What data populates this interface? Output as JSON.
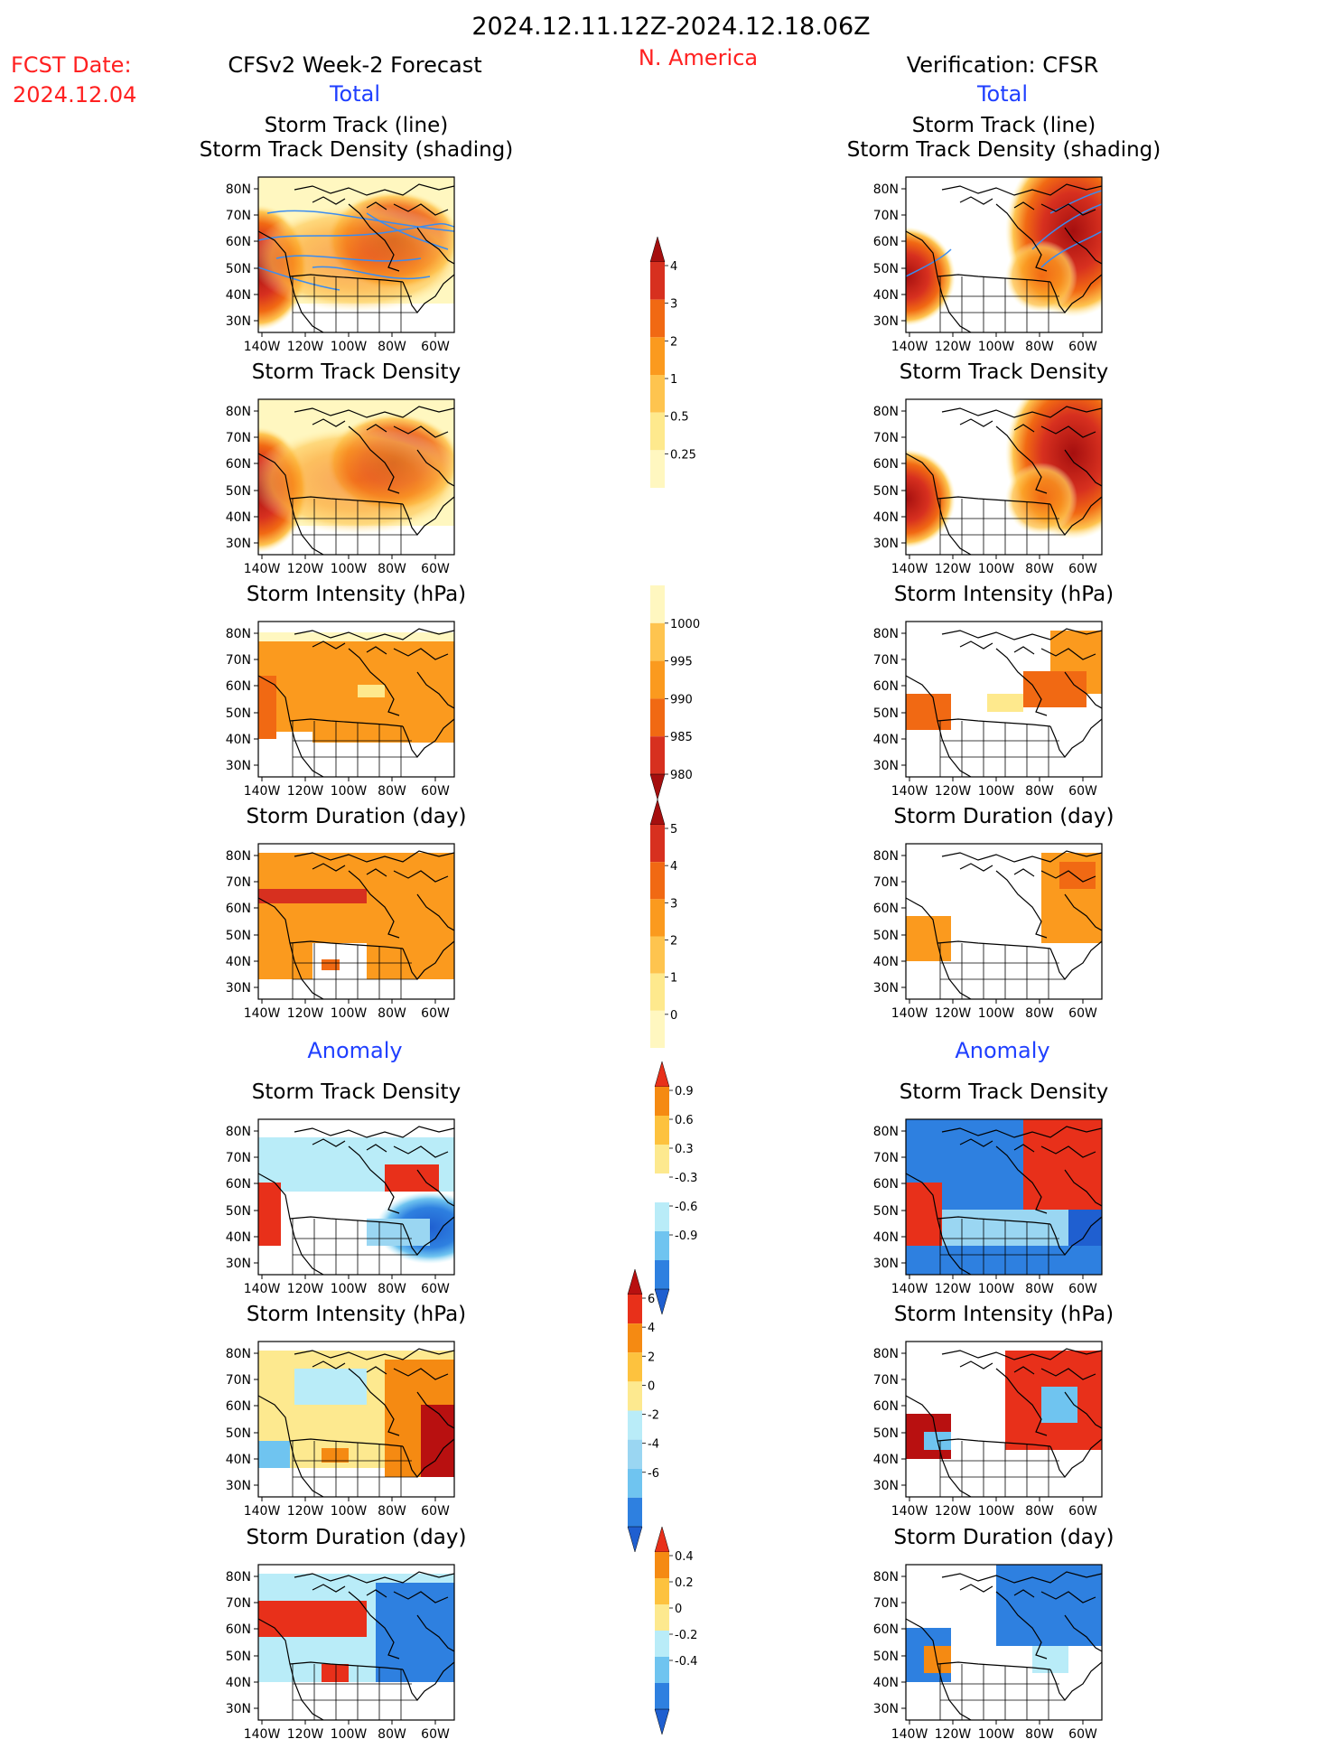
{
  "header": {
    "period": "2024.12.11.12Z-2024.12.18.06Z",
    "region": "N. America",
    "fcst_label": "FCST Date:",
    "fcst_date": "2024.12.04",
    "left_title": "CFSv2 Week-2 Forecast",
    "right_title": "Verification: CFSR",
    "total_label": "Total",
    "anomaly_label": "Anomaly"
  },
  "panels": [
    {
      "title1": "Storm Track (line)",
      "title2": "Storm Track Density (shading)",
      "scale": "density",
      "kind": "track"
    },
    {
      "title1": "Storm Track Density",
      "title2": "",
      "scale": "density",
      "kind": "density"
    },
    {
      "title1": "Storm Intensity (hPa)",
      "title2": "",
      "scale": "intensity",
      "kind": "intensity"
    },
    {
      "title1": "Storm Duration (day)",
      "title2": "",
      "scale": "duration",
      "kind": "duration"
    },
    {
      "title1": "Storm Track Density",
      "title2": "",
      "scale": "anom_density",
      "kind": "anom_density"
    },
    {
      "title1": "Storm Intensity (hPa)",
      "title2": "",
      "scale": "anom_intensity",
      "kind": "anom_intensity"
    },
    {
      "title1": "Storm Duration (day)",
      "title2": "",
      "scale": "anom_duration",
      "kind": "anom_duration"
    }
  ],
  "axes": {
    "lat_labels": [
      "80N",
      "70N",
      "60N",
      "50N",
      "40N",
      "30N"
    ],
    "lon_labels": [
      "140W",
      "120W",
      "100W",
      "80W",
      "60W"
    ]
  },
  "colorbars": {
    "density": {
      "labels": [
        "4",
        "3",
        "2",
        "1",
        "0.5",
        "0.25"
      ],
      "colors": [
        "#a50f0f",
        "#d7301f",
        "#f16913",
        "#fb9a1e",
        "#fec44f",
        "#fee98d",
        "#fff7c0"
      ]
    },
    "intensity": {
      "labels": [
        "1000",
        "995",
        "990",
        "985",
        "980"
      ],
      "colors": [
        "#fff7c0",
        "#fec44f",
        "#fb9a1e",
        "#f16913",
        "#d7301f",
        "#a50f0f"
      ]
    },
    "duration": {
      "labels": [
        "5",
        "4",
        "3",
        "2",
        "1",
        "0"
      ],
      "colors": [
        "#a50f0f",
        "#d7301f",
        "#f16913",
        "#fb9a1e",
        "#fec44f",
        "#fee98d",
        "#fff7c0"
      ]
    },
    "anom_density": {
      "labels": [
        "0.9",
        "0.6",
        "0.3",
        "-0.3",
        "-0.6",
        "-0.9"
      ],
      "colors": [
        "#e8301a",
        "#f58a12",
        "#fdc23e",
        "#fde98f",
        "#ffffff",
        "#b9ecf8",
        "#6fc4f0",
        "#2e80e0",
        "#1f5fd0"
      ]
    },
    "anom_intensity": {
      "labels": [
        "6",
        "4",
        "2",
        "0",
        "-2",
        "-4",
        "-6"
      ],
      "colors": [
        "#b81010",
        "#e8301a",
        "#f58a12",
        "#fdc23e",
        "#fde98f",
        "#b9ecf8",
        "#9ad6f2",
        "#6fc4f0",
        "#2e80e0",
        "#1f5fd0"
      ]
    },
    "anom_duration": {
      "labels": [
        "0.4",
        "0.2",
        "0",
        "-0.2",
        "-0.4"
      ],
      "colors": [
        "#e8301a",
        "#f58a12",
        "#fdc23e",
        "#fde98f",
        "#b9ecf8",
        "#6fc4f0",
        "#2e80e0",
        "#1f5fd0"
      ]
    }
  },
  "palette": {
    "title": "#000000",
    "blue": "#1f3fff",
    "red": "#ff2020"
  }
}
